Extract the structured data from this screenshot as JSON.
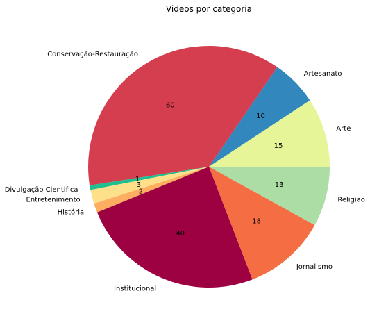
{
  "chart_data": {
    "type": "pie",
    "title": "Videos por categoria",
    "start_angle_deg": 0,
    "direction": "counterclockwise",
    "slices": [
      {
        "label": "Arte",
        "value": 15,
        "color": "#e6f598"
      },
      {
        "label": "Artesanato",
        "value": 10,
        "color": "#3288bd"
      },
      {
        "label": "Conservação-Restauração",
        "value": 60,
        "color": "#d53e4f"
      },
      {
        "label": "Divulgação Cientifica",
        "value": 1,
        "color": "#1fbf8f"
      },
      {
        "label": "Entretenimento",
        "value": 3,
        "color": "#fee08b"
      },
      {
        "label": "História",
        "value": 2,
        "color": "#fdae61"
      },
      {
        "label": "Institucional",
        "value": 40,
        "color": "#9e0142"
      },
      {
        "label": "Jornalismo",
        "value": 18,
        "color": "#f46d43"
      },
      {
        "label": "Religião",
        "value": 13,
        "color": "#abdda4"
      }
    ]
  }
}
